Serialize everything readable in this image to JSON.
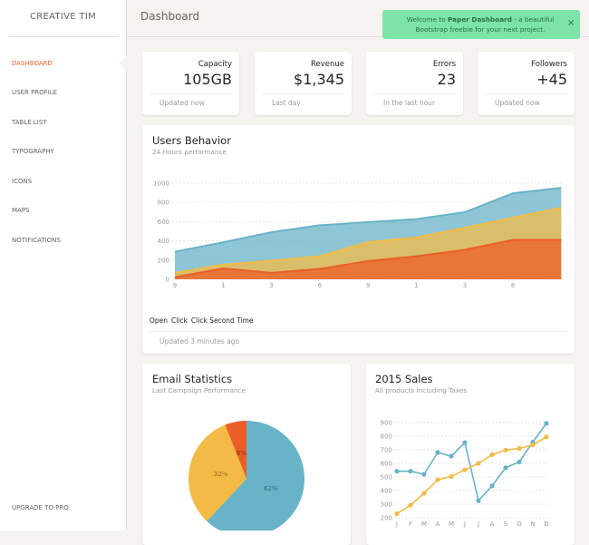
{
  "sidebar": {
    "brand": "CREATIVE TIM",
    "nav": [
      "DASHBOARD",
      "USER PROFILE",
      "TABLE LIST",
      "TYPOGRAPHY",
      "ICONS",
      "MAPS",
      "NOTIFICATIONS"
    ],
    "upgrade": "UPGRADE TO PRO"
  },
  "header": {
    "title": "Dashboard"
  },
  "notification": {
    "before": "Welcome to ",
    "bold": "Paper Dashboard",
    "after": " - a beautiful Bootstrap freebie for your next project.",
    "close": "×"
  },
  "stats": [
    {
      "label": "Capacity",
      "value": "105GB",
      "footer": "Updated now"
    },
    {
      "label": "Revenue",
      "value": "$1,345",
      "footer": "Last day"
    },
    {
      "label": "Errors",
      "value": "23",
      "footer": "In the last hour"
    },
    {
      "label": "Followers",
      "value": "+45",
      "footer": "Updated now"
    }
  ],
  "chart_data": [
    {
      "type": "area",
      "title": "Users Behavior",
      "subtitle": "24 Hours performance",
      "footer": "Updated 3 minutes ago",
      "categories": [
        "9",
        "1",
        "3",
        "6",
        "9",
        "1",
        "3",
        "6",
        null
      ],
      "series": [
        {
          "name": "Open",
          "color": "#68B3C8",
          "values": [
            287,
            385,
            490,
            562,
            594,
            626,
            698,
            895,
            952
          ]
        },
        {
          "name": "Click",
          "color": "#F3BB45",
          "values": [
            67,
            152,
            193,
            240,
            387,
            435,
            535,
            642,
            744
          ]
        },
        {
          "name": "Click Second Time",
          "color": "#EB5E28",
          "values": [
            23,
            113,
            67,
            108,
            190,
            239,
            307,
            410,
            410
          ]
        }
      ],
      "ylim": [
        0,
        1000
      ],
      "yticks": [
        0,
        200,
        400,
        600,
        800,
        1000
      ],
      "grid": true
    },
    {
      "type": "pie",
      "title": "Email Statistics",
      "subtitle": "Last Campaign Performance",
      "values": [
        62,
        32,
        6
      ],
      "value_labels": [
        "62%",
        "32%",
        "6%"
      ],
      "colors": [
        "#68B3C8",
        "#F3BB45",
        "#EB5E28"
      ]
    },
    {
      "type": "line",
      "title": "2015 Sales",
      "subtitle": "All products including Taxes",
      "categories": [
        "J",
        "F",
        "M",
        "A",
        "M",
        "J",
        "J",
        "A",
        "S",
        "O",
        "N",
        "D"
      ],
      "series": [
        {
          "color": "#68B3C8",
          "values": [
            542,
            543,
            520,
            680,
            653,
            753,
            326,
            434,
            568,
            610,
            756,
            895
          ]
        },
        {
          "color": "#F3BB45",
          "values": [
            230,
            293,
            380,
            480,
            503,
            553,
            600,
            664,
            698,
            710,
            736,
            795
          ]
        }
      ],
      "ylim": [
        200,
        900
      ],
      "yticks": [
        200,
        300,
        400,
        500,
        600,
        700,
        800,
        900
      ],
      "grid": true
    }
  ]
}
